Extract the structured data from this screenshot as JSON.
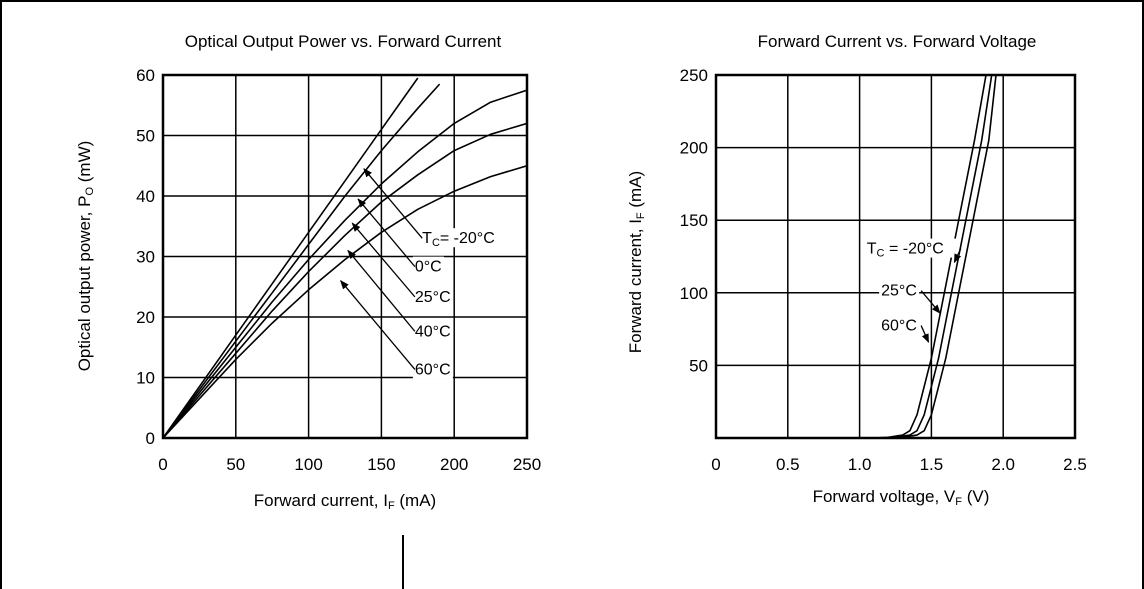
{
  "chart_data": [
    {
      "type": "line",
      "title": "Optical Output Power vs. Forward Current",
      "xlabel": "Forward current, I",
      "xlabel_sub": "F",
      "xlabel_unit": " (mA)",
      "ylabel": "Optical output power, P",
      "ylabel_sub": "O",
      "ylabel_unit": " (mW)",
      "xlim": [
        0,
        250
      ],
      "ylim": [
        0,
        60
      ],
      "xticks": [
        0,
        50,
        100,
        150,
        200,
        250
      ],
      "yticks": [
        0,
        10,
        20,
        30,
        40,
        50,
        60
      ],
      "grid": true,
      "series": [
        {
          "name": "TC= -20°C",
          "x": [
            0,
            25,
            50,
            75,
            100,
            125,
            150,
            175
          ],
          "y": [
            0,
            8.5,
            17,
            25.5,
            34,
            42.5,
            51,
            59.5
          ]
        },
        {
          "name": "0°C",
          "x": [
            0,
            25,
            50,
            75,
            100,
            125,
            150,
            175,
            190
          ],
          "y": [
            0,
            8,
            16,
            24,
            32,
            40,
            47.5,
            54.5,
            58.5
          ]
        },
        {
          "name": "25°C",
          "x": [
            0,
            25,
            50,
            75,
            100,
            125,
            150,
            175,
            200,
            225,
            250
          ],
          "y": [
            0,
            7.5,
            15,
            22.5,
            29.5,
            36,
            42,
            47.3,
            52,
            55.5,
            57.5
          ]
        },
        {
          "name": "40°C",
          "x": [
            0,
            25,
            50,
            75,
            100,
            125,
            150,
            175,
            200,
            225,
            250
          ],
          "y": [
            0,
            7,
            14,
            21,
            27.5,
            33.5,
            39,
            43.5,
            47.5,
            50.2,
            52
          ]
        },
        {
          "name": "60°C",
          "x": [
            0,
            25,
            50,
            75,
            100,
            125,
            150,
            175,
            200,
            225,
            250
          ],
          "y": [
            0,
            6.5,
            13,
            19,
            24.5,
            29.5,
            34,
            37.8,
            40.8,
            43.2,
            45
          ]
        }
      ],
      "annotations": [
        {
          "label_parts": [
            "T",
            "C",
            "= -20°C"
          ],
          "label_x": 178,
          "label_y": 32.2,
          "arrow_to": [
            138,
            44.5
          ]
        },
        {
          "label_parts": [
            "0°C"
          ],
          "label_x": 173,
          "label_y": 27.5,
          "arrow_to": [
            134,
            39.5
          ]
        },
        {
          "label_parts": [
            "25°C"
          ],
          "label_x": 173,
          "label_y": 22.5,
          "arrow_to": [
            130,
            35.5
          ]
        },
        {
          "label_parts": [
            "40°C"
          ],
          "label_x": 173,
          "label_y": 16.8,
          "arrow_to": [
            127,
            31
          ]
        },
        {
          "label_parts": [
            "60°C"
          ],
          "label_x": 173,
          "label_y": 10.5,
          "arrow_to": [
            122,
            26
          ]
        }
      ]
    },
    {
      "type": "line",
      "title": "Forward Current vs. Forward Voltage",
      "xlabel": "Forward voltage,  V",
      "xlabel_sub": "F",
      "xlabel_unit": " (V)",
      "ylabel": "Forward current, I",
      "ylabel_sub": "F",
      "ylabel_unit": " (mA)",
      "xlim": [
        0,
        2.5
      ],
      "ylim": [
        0,
        250
      ],
      "xticks": [
        "0",
        "0.5",
        "1.0",
        "1.5",
        "2.0",
        "2.5"
      ],
      "yticks": [
        50,
        100,
        150,
        200,
        250
      ],
      "grid": true,
      "series": [
        {
          "name": "TC = -20°C",
          "x": [
            0,
            1.2,
            1.3,
            1.4,
            1.45,
            1.5,
            1.6,
            1.7,
            1.8,
            1.9,
            1.95
          ],
          "y": [
            0,
            0,
            0.5,
            2,
            5,
            16,
            55,
            105,
            155,
            205,
            250
          ]
        },
        {
          "name": "25°C",
          "x": [
            0,
            1.15,
            1.25,
            1.35,
            1.4,
            1.45,
            1.55,
            1.65,
            1.75,
            1.85,
            1.92
          ],
          "y": [
            0,
            0,
            0.5,
            2,
            5,
            16,
            55,
            105,
            155,
            205,
            250
          ]
        },
        {
          "name": "60°C",
          "x": [
            0,
            1.1,
            1.2,
            1.3,
            1.35,
            1.4,
            1.5,
            1.6,
            1.7,
            1.8,
            1.88
          ],
          "y": [
            0,
            0,
            0.5,
            2,
            5,
            16,
            55,
            105,
            155,
            205,
            250
          ]
        }
      ],
      "annotations": [
        {
          "label_parts": [
            "T",
            "C",
            " = -20°C"
          ],
          "label_x": 1.05,
          "label_y": 127,
          "arrow_to": [
            1.66,
            121
          ]
        },
        {
          "label_parts": [
            "25°C"
          ],
          "label_x": 1.15,
          "label_y": 98,
          "arrow_to": [
            1.56,
            86
          ]
        },
        {
          "label_parts": [
            "60°C"
          ],
          "label_x": 1.15,
          "label_y": 74,
          "arrow_to": [
            1.48,
            66
          ]
        }
      ]
    }
  ],
  "colors": {
    "ink": "#000000",
    "background": "#ffffff"
  }
}
